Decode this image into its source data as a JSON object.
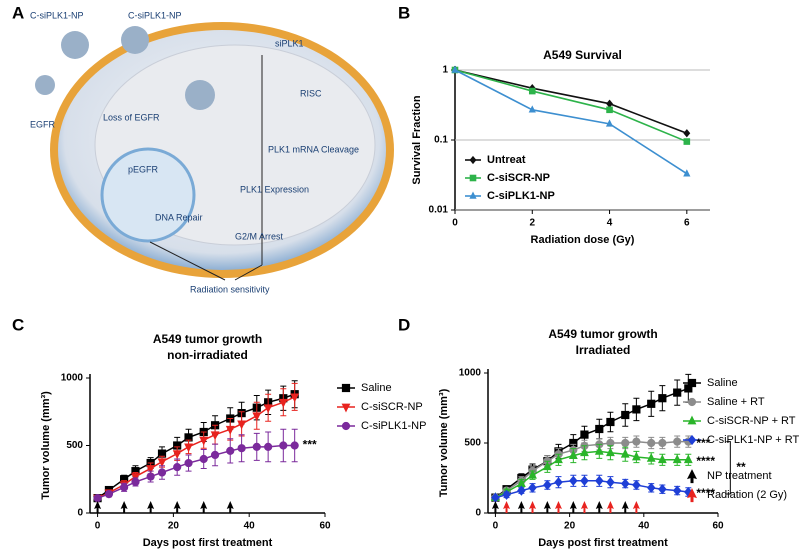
{
  "panels": [
    "A",
    "B",
    "C",
    "D"
  ],
  "diagram": {
    "labels": [
      "C-siPLK1-NP",
      "C-siPLK1-NP",
      "EGFR",
      "Loss of EGFR",
      "pEGFR",
      "DNA Repair",
      "siPLK1",
      "RISC",
      "PLK1 mRNA Cleavage",
      "PLK1 Expression",
      "G2/M Arrest",
      "Radiation sensitivity"
    ]
  },
  "chart_data": [
    {
      "type": "line",
      "title": "A549 Survival",
      "xlabel": "Radiation dose (Gy)",
      "ylabel": "Survival Fraction",
      "x": [
        0,
        2,
        4,
        6
      ],
      "xlim": [
        0,
        6.6
      ],
      "xticks": [
        0,
        2,
        4,
        6
      ],
      "ylim": [
        0.01,
        1
      ],
      "yticks": [
        0.01,
        0.1,
        1
      ],
      "log_y": true,
      "grid": true,
      "legend": "lower left",
      "series": [
        {
          "name": "Untreat",
          "color": "#111111",
          "marker": "diamond",
          "values": [
            1,
            0.55,
            0.33,
            0.125
          ]
        },
        {
          "name": "C-siSCR-NP",
          "color": "#2db34a",
          "marker": "square",
          "values": [
            1,
            0.5,
            0.27,
            0.095
          ]
        },
        {
          "name": "C-siPLK1-NP",
          "color": "#3d8fd0",
          "marker": "triangle",
          "values": [
            1,
            0.27,
            0.17,
            0.033
          ]
        }
      ]
    },
    {
      "type": "line",
      "title": "A549 tumor growth",
      "subtitle": "non-irradiated",
      "xlabel": "Days post first treatment",
      "ylabel": "Tumor volume (mm³)",
      "x": [
        0,
        3,
        7,
        10,
        14,
        17,
        21,
        24,
        28,
        31,
        35,
        38,
        42,
        45,
        49,
        52
      ],
      "xlim": [
        -2,
        60
      ],
      "xticks": [
        0,
        20,
        40,
        60
      ],
      "ylim": [
        0,
        1000
      ],
      "yticks": [
        0,
        500,
        1000
      ],
      "legend": "right",
      "series": [
        {
          "name": "Saline",
          "color": "#000000",
          "marker": "square",
          "values": [
            110,
            170,
            250,
            310,
            370,
            440,
            500,
            560,
            600,
            650,
            700,
            740,
            780,
            820,
            850,
            880
          ],
          "errors": [
            10,
            20,
            30,
            40,
            40,
            50,
            60,
            60,
            70,
            70,
            80,
            80,
            90,
            90,
            90,
            100
          ]
        },
        {
          "name": "C-siSCR-NP",
          "color": "#e8231f",
          "marker": "triangle-down",
          "values": [
            110,
            150,
            210,
            270,
            330,
            380,
            440,
            490,
            540,
            580,
            620,
            660,
            720,
            780,
            820,
            860
          ],
          "errors": [
            10,
            20,
            30,
            30,
            40,
            40,
            50,
            50,
            60,
            70,
            80,
            90,
            100,
            100,
            100,
            100
          ]
        },
        {
          "name": "C-siPLK1-NP",
          "color": "#7b2a9c",
          "marker": "circle",
          "values": [
            110,
            140,
            190,
            230,
            270,
            300,
            340,
            370,
            400,
            430,
            460,
            480,
            490,
            490,
            500,
            500
          ],
          "errors": [
            10,
            20,
            30,
            30,
            40,
            50,
            60,
            60,
            70,
            80,
            90,
            100,
            100,
            110,
            120,
            120
          ]
        }
      ],
      "treatments": [
        {
          "color": "#000000",
          "days": [
            0,
            7,
            14,
            21,
            28,
            35
          ]
        }
      ],
      "annotations": [
        "***"
      ]
    },
    {
      "type": "line",
      "title": "A549 tumor growth",
      "subtitle": "Irradiated",
      "xlabel": "Days post first treatment",
      "ylabel": "Tumor volume (mm³)",
      "x": [
        0,
        3,
        7,
        10,
        14,
        17,
        21,
        24,
        28,
        31,
        35,
        38,
        42,
        45,
        49,
        52
      ],
      "xlim": [
        -2,
        60
      ],
      "xticks": [
        0,
        20,
        40,
        60
      ],
      "ylim": [
        0,
        1000
      ],
      "yticks": [
        0,
        500,
        1000
      ],
      "legend": "right",
      "series": [
        {
          "name": "Saline",
          "color": "#000000",
          "marker": "square",
          "values": [
            110,
            170,
            250,
            310,
            370,
            440,
            500,
            560,
            600,
            650,
            700,
            740,
            780,
            820,
            860,
            890
          ],
          "errors": [
            10,
            20,
            30,
            40,
            40,
            50,
            60,
            60,
            70,
            70,
            80,
            80,
            90,
            90,
            90,
            100
          ]
        },
        {
          "name": "Saline + RT",
          "color": "#8c8c8c",
          "marker": "circle",
          "values": [
            110,
            160,
            230,
            300,
            370,
            420,
            450,
            480,
            490,
            500,
            500,
            510,
            500,
            500,
            510,
            510
          ],
          "errors": [
            10,
            20,
            30,
            30,
            40,
            40,
            40,
            40,
            40,
            40,
            40,
            40,
            40,
            40,
            40,
            40
          ]
        },
        {
          "name": "C-siSCR-NP + RT",
          "color": "#2ab52a",
          "marker": "triangle",
          "values": [
            110,
            150,
            210,
            270,
            330,
            380,
            410,
            430,
            440,
            430,
            420,
            400,
            390,
            380,
            380,
            380
          ],
          "errors": [
            10,
            20,
            30,
            30,
            40,
            40,
            50,
            50,
            50,
            50,
            50,
            40,
            40,
            40,
            40,
            40
          ]
        },
        {
          "name": "C-siPLK1-NP + RT",
          "color": "#1f3fd6",
          "marker": "diamond",
          "values": [
            110,
            130,
            160,
            180,
            200,
            220,
            230,
            230,
            230,
            220,
            210,
            200,
            180,
            170,
            160,
            150
          ],
          "errors": [
            10,
            20,
            20,
            30,
            30,
            40,
            40,
            40,
            40,
            40,
            30,
            30,
            30,
            30,
            30,
            30
          ]
        }
      ],
      "treatments": [
        {
          "name": "NP treatment",
          "color": "#000000",
          "days": [
            0,
            7,
            14,
            21,
            28,
            35
          ]
        },
        {
          "name": "Radiation (2 Gy)",
          "color": "#e8231f",
          "days": [
            3,
            10,
            17,
            24,
            31,
            38
          ]
        }
      ],
      "annotations": [
        "***",
        "****",
        "****",
        "**"
      ]
    }
  ]
}
